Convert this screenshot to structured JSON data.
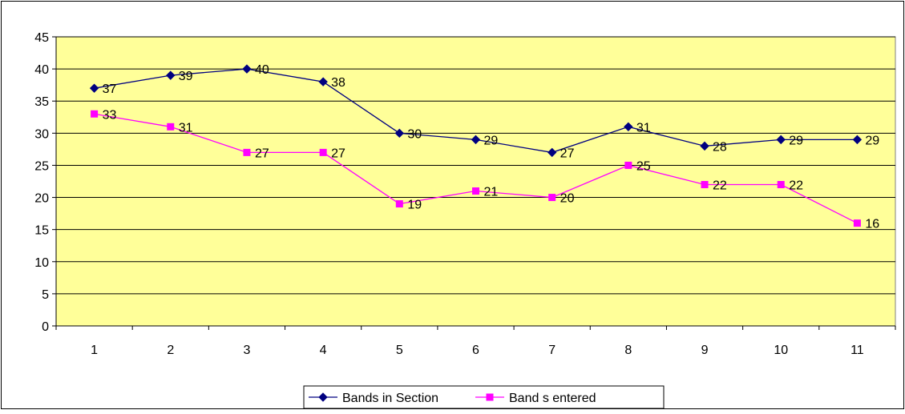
{
  "chart_data": {
    "type": "line",
    "categories": [
      "1",
      "2",
      "3",
      "4",
      "5",
      "6",
      "7",
      "8",
      "9",
      "10",
      "11"
    ],
    "ylim": [
      0,
      45
    ],
    "ytick_step": 5,
    "y_ticks": [
      "0",
      "5",
      "10",
      "15",
      "20",
      "25",
      "30",
      "35",
      "40",
      "45"
    ],
    "grid": "horizontal",
    "legend_position": "bottom",
    "plot_background": "#FFFF99",
    "series": [
      {
        "name": "Bands in Section",
        "values": [
          37,
          39,
          40,
          38,
          30,
          29,
          27,
          31,
          28,
          29,
          29
        ],
        "color": "#000080",
        "marker": "diamond",
        "data_labels": [
          "37",
          "39",
          "40",
          "38",
          "30",
          "29",
          "27",
          "31",
          "28",
          "29",
          "29"
        ]
      },
      {
        "name": "Band s entered",
        "values": [
          33,
          31,
          27,
          27,
          19,
          21,
          20,
          25,
          22,
          22,
          16
        ],
        "color": "#FF00FF",
        "marker": "square",
        "data_labels": [
          "33",
          "31",
          "27",
          "27",
          "19",
          "21",
          "20",
          "25",
          "22",
          "22",
          "16"
        ]
      }
    ]
  }
}
